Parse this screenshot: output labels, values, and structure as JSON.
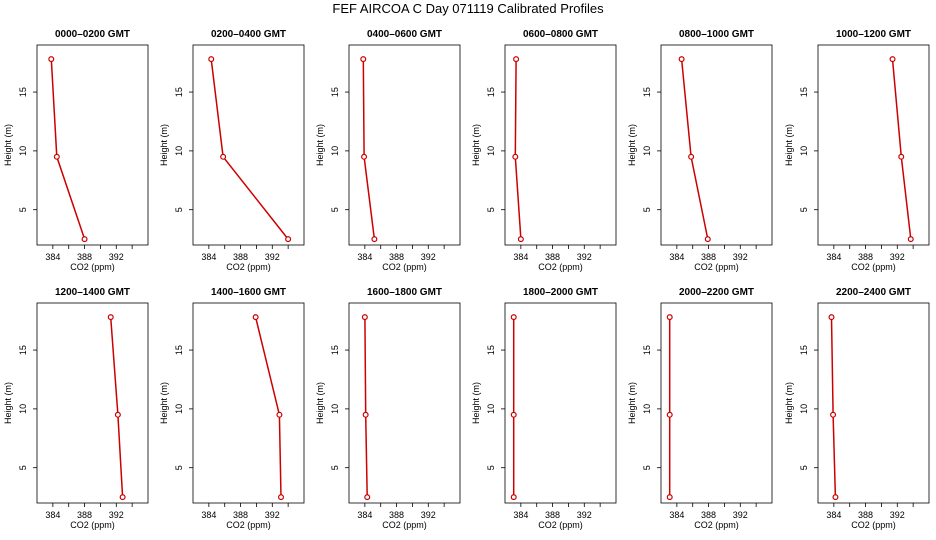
{
  "title": "FEF AIRCOA C  Day 071119  Calibrated Profiles",
  "chart_data": {
    "type": "line",
    "xlabel": "CO2 (ppm)",
    "ylabel": "Height (m)",
    "xlim": [
      382,
      396
    ],
    "ylim": [
      2,
      19
    ],
    "xticks": [
      384,
      388,
      392
    ],
    "yticks": [
      5,
      10,
      15
    ],
    "series_color": "#cc0000",
    "marker": "circle",
    "heights": [
      2.5,
      9.5,
      17.8
    ],
    "panels": [
      {
        "title": "0000–0200 GMT",
        "values": [
          388.0,
          384.5,
          383.8
        ]
      },
      {
        "title": "0200–0400 GMT",
        "values": [
          394.0,
          385.8,
          384.3
        ]
      },
      {
        "title": "0400–0600 GMT",
        "values": [
          385.2,
          383.9,
          383.8
        ]
      },
      {
        "title": "0600–0800 GMT",
        "values": [
          384.0,
          383.3,
          383.4
        ]
      },
      {
        "title": "0800–1000 GMT",
        "values": [
          387.9,
          385.8,
          384.6
        ]
      },
      {
        "title": "1000–1200 GMT",
        "values": [
          393.7,
          392.5,
          391.4
        ]
      },
      {
        "title": "1200–1400 GMT",
        "values": [
          392.8,
          392.2,
          391.3
        ]
      },
      {
        "title": "1400–1600 GMT",
        "values": [
          393.1,
          392.9,
          389.9
        ]
      },
      {
        "title": "1600–1800 GMT",
        "values": [
          384.3,
          384.1,
          384.0
        ]
      },
      {
        "title": "1800–2000 GMT",
        "values": [
          383.1,
          383.1,
          383.1
        ]
      },
      {
        "title": "2000–2200 GMT",
        "values": [
          383.1,
          383.1,
          383.1
        ]
      },
      {
        "title": "2200–2400 GMT",
        "values": [
          384.2,
          383.9,
          383.7
        ]
      }
    ]
  }
}
